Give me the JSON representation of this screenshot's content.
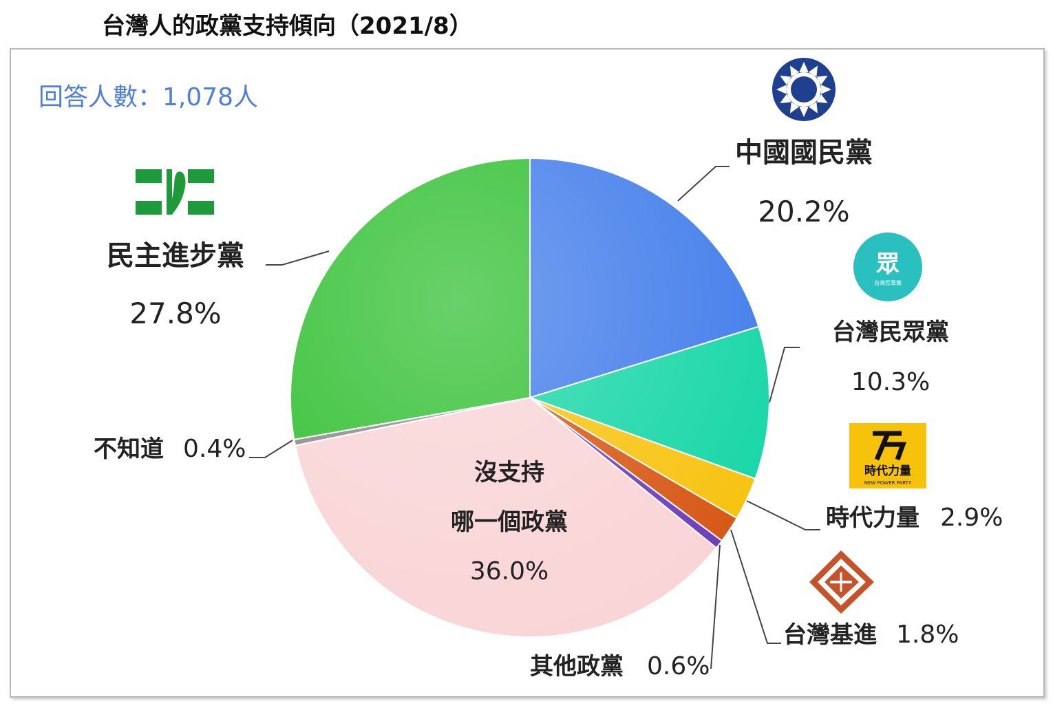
{
  "title": "台灣人的政黨支持傾向（2021/8）",
  "respondents": "回答人數：1,078人",
  "chart_data": {
    "type": "pie",
    "title": "台灣人的政黨支持傾向（2021/8）",
    "slices": [
      {
        "key": "kmt",
        "label": "中國國民黨",
        "value": 20.2,
        "value_label": "20.2%",
        "color": "#3f7bea"
      },
      {
        "key": "tpp",
        "label": "台灣民眾黨",
        "value": 10.3,
        "value_label": "10.3%",
        "color": "#14d6a6"
      },
      {
        "key": "npp",
        "label": "時代力量",
        "value": 2.9,
        "value_label": "2.9%",
        "color": "#f7c20c"
      },
      {
        "key": "tsp",
        "label": "台灣基進",
        "value": 1.8,
        "value_label": "1.8%",
        "color": "#d65512"
      },
      {
        "key": "other",
        "label": "其他政黨",
        "value": 0.6,
        "value_label": "0.6%",
        "color": "#6c3ab8"
      },
      {
        "key": "none",
        "label_lines": [
          "沒支持",
          "哪一個政黨"
        ],
        "value": 36.0,
        "value_label": "36.0%",
        "color": "#f9d4d6"
      },
      {
        "key": "dk",
        "label": "不知道",
        "value": 0.4,
        "value_label": "0.4%",
        "color": "#8a8a8a"
      },
      {
        "key": "dpp",
        "label": "民主進步黨",
        "value": 27.8,
        "value_label": "27.8%",
        "color": "#2fbf2f"
      }
    ]
  },
  "logos": {
    "kmt": "kmt-emblem-icon",
    "tpp": "tpp-logo-icon",
    "tpp_text": "眾",
    "tpp_small": "台灣民眾黨",
    "npp": "npp-logo-icon",
    "npp_text": "時代力量",
    "npp_small": "NEW POWER PARTY",
    "tsp": "tsp-logo-icon",
    "dpp": "dpp-logo-icon"
  }
}
